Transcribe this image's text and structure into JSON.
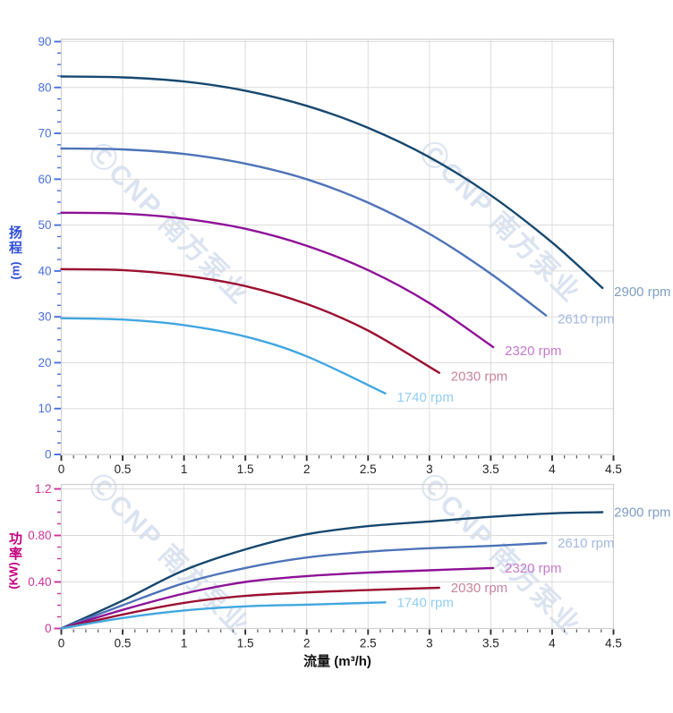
{
  "watermark": {
    "text": "ⒸCNP 南方泵业"
  },
  "colors": {
    "grid": "#dcdcdc",
    "frame": "#cfcfcf",
    "x_tick_major": "#2f2f2f",
    "x_tick_minor": "#5a5a5a",
    "x_label": "#222222",
    "head_axis": "#4a6fdc",
    "power_axis": "#cc3399",
    "head_title": "#2f4fd6",
    "power_title": "#c0007c",
    "flow_title": "#111111"
  },
  "flow_axis": {
    "label": "流量 (m³/h)",
    "tick_labels": [
      "0",
      "0.5",
      "1",
      "1.5",
      "2",
      "2.5",
      "3",
      "3.5",
      "4",
      "4.5"
    ],
    "tick_values": [
      0,
      0.5,
      1,
      1.5,
      2,
      2.5,
      3,
      3.5,
      4,
      4.5
    ],
    "minor_step": 0.1,
    "range": [
      0,
      4.5
    ]
  },
  "chart_data": [
    {
      "type": "line",
      "name": "head-vs-flow",
      "ylabel_main": "扬程",
      "ylabel_unit": "(m)",
      "xlabel": "流量 (m³/h)",
      "ylim": [
        0,
        90
      ],
      "ytick_labels": [
        "0",
        "10",
        "20",
        "30",
        "40",
        "50",
        "60",
        "70",
        "80",
        "90"
      ],
      "ytick_values": [
        0,
        10,
        20,
        30,
        40,
        50,
        60,
        70,
        80,
        90
      ],
      "yminor_step": 2.5,
      "grid": true,
      "legend_position": "end-of-line",
      "series": [
        {
          "name": "2900 rpm",
          "color": "#17486f",
          "label_color": "#7f9dc2",
          "points": [
            [
              0,
              82.4
            ],
            [
              0.5,
              82.2
            ],
            [
              1,
              81.3
            ],
            [
              1.5,
              79.3
            ],
            [
              2,
              76.0
            ],
            [
              2.5,
              71.2
            ],
            [
              3,
              64.8
            ],
            [
              3.5,
              56.5
            ],
            [
              4,
              46.2
            ],
            [
              4.41,
              36.3
            ]
          ]
        },
        {
          "name": "2610 rpm",
          "color": "#4e73b8",
          "label_color": "#a3b8e0",
          "points": [
            [
              0,
              66.7
            ],
            [
              0.5,
              66.5
            ],
            [
              1,
              65.5
            ],
            [
              1.5,
              63.4
            ],
            [
              2,
              60.0
            ],
            [
              2.5,
              54.9
            ],
            [
              3,
              48.1
            ],
            [
              3.5,
              39.4
            ],
            [
              3.95,
              30.3
            ]
          ]
        },
        {
          "name": "2320 rpm",
          "color": "#8e1197",
          "label_color": "#c678cc",
          "points": [
            [
              0,
              52.7
            ],
            [
              0.5,
              52.5
            ],
            [
              1,
              51.4
            ],
            [
              1.5,
              49.2
            ],
            [
              2,
              45.5
            ],
            [
              2.5,
              40.2
            ],
            [
              3,
              33.0
            ],
            [
              3.52,
              23.4
            ]
          ]
        },
        {
          "name": "2030 rpm",
          "color": "#9c1133",
          "label_color": "#c8849b",
          "points": [
            [
              0,
              40.4
            ],
            [
              0.5,
              40.2
            ],
            [
              1,
              39.0
            ],
            [
              1.5,
              36.7
            ],
            [
              2,
              32.8
            ],
            [
              2.5,
              27.0
            ],
            [
              3.08,
              17.8
            ]
          ]
        },
        {
          "name": "1740 rpm",
          "color": "#41a7e0",
          "label_color": "#92cdf2",
          "points": [
            [
              0,
              29.7
            ],
            [
              0.5,
              29.4
            ],
            [
              1,
              28.2
            ],
            [
              1.5,
              25.7
            ],
            [
              2,
              21.4
            ],
            [
              2.64,
              13.3
            ]
          ]
        }
      ]
    },
    {
      "type": "line",
      "name": "power-vs-flow",
      "ylabel_main": "功率",
      "ylabel_unit": "(KW)",
      "xlabel": "流量 (m³/h)",
      "ylim": [
        0,
        1.2
      ],
      "ytick_labels": [
        "0",
        "0.40",
        "0.80",
        "1.2"
      ],
      "ytick_values": [
        0,
        0.4,
        0.8,
        1.2
      ],
      "yminor_step": 0.1,
      "grid": true,
      "legend_position": "end-of-line",
      "series": [
        {
          "name": "2900 rpm",
          "color": "#17486f",
          "label_color": "#7f9dc2",
          "points": [
            [
              0,
              0
            ],
            [
              0.5,
              0.24
            ],
            [
              1,
              0.5
            ],
            [
              1.5,
              0.68
            ],
            [
              2,
              0.81
            ],
            [
              2.5,
              0.88
            ],
            [
              3,
              0.92
            ],
            [
              3.5,
              0.96
            ],
            [
              4,
              0.99
            ],
            [
              4.41,
              1.0
            ]
          ]
        },
        {
          "name": "2610 rpm",
          "color": "#4e73b8",
          "label_color": "#a3b8e0",
          "points": [
            [
              0,
              0
            ],
            [
              0.5,
              0.2
            ],
            [
              1,
              0.39
            ],
            [
              1.5,
              0.52
            ],
            [
              2,
              0.61
            ],
            [
              2.5,
              0.66
            ],
            [
              3,
              0.69
            ],
            [
              3.5,
              0.71
            ],
            [
              3.95,
              0.735
            ]
          ]
        },
        {
          "name": "2320 rpm",
          "color": "#8e1197",
          "label_color": "#c678cc",
          "points": [
            [
              0,
              0
            ],
            [
              0.5,
              0.16
            ],
            [
              1,
              0.3
            ],
            [
              1.5,
              0.4
            ],
            [
              2,
              0.45
            ],
            [
              2.5,
              0.48
            ],
            [
              3,
              0.5
            ],
            [
              3.52,
              0.52
            ]
          ]
        },
        {
          "name": "2030 rpm",
          "color": "#9c1133",
          "label_color": "#c8849b",
          "points": [
            [
              0,
              0
            ],
            [
              0.5,
              0.12
            ],
            [
              1,
              0.22
            ],
            [
              1.5,
              0.28
            ],
            [
              2,
              0.31
            ],
            [
              2.5,
              0.33
            ],
            [
              3.08,
              0.35
            ]
          ]
        },
        {
          "name": "1740 rpm",
          "color": "#41a7e0",
          "label_color": "#92cdf2",
          "points": [
            [
              0,
              0
            ],
            [
              0.5,
              0.09
            ],
            [
              1,
              0.155
            ],
            [
              1.5,
              0.19
            ],
            [
              2,
              0.205
            ],
            [
              2.64,
              0.225
            ]
          ]
        }
      ]
    }
  ]
}
